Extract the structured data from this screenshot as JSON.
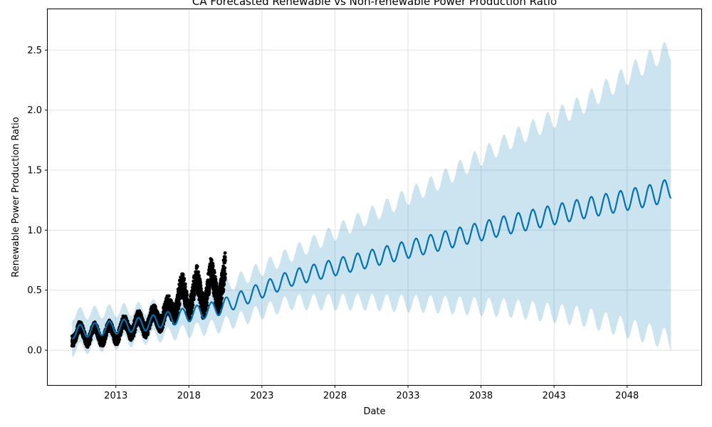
{
  "chart_data": {
    "type": "line",
    "title": "CA Forecasted Renewable vs Non-renewable Power Production Ratio",
    "xlabel": "Date",
    "ylabel": "Renewable Power Production Ratio",
    "xlim": [
      "2008-05-01",
      "2053-02-01"
    ],
    "ylim": [
      -0.29,
      2.84
    ],
    "x_ticks": [
      "2013",
      "2018",
      "2023",
      "2028",
      "2033",
      "2038",
      "2043",
      "2048"
    ],
    "y_ticks": [
      "0.0",
      "0.5",
      "1.0",
      "1.5",
      "2.0",
      "2.5"
    ],
    "grid": true,
    "colors": {
      "forecast_line": "#0072B2",
      "uncertainty_band": "#0072B2",
      "observed_points": "#000000",
      "grid": "#e0e0e0"
    },
    "series": [
      {
        "role": "observed_points",
        "x": [
          "2010-01",
          "2011-01",
          "2012-01",
          "2013-01",
          "2014-01",
          "2015-01",
          "2016-01",
          "2017-01",
          "2017-07",
          "2018-01",
          "2018-07",
          "2019-01",
          "2019-07",
          "2020-01",
          "2020-07"
        ],
        "y": [
          0.14,
          0.13,
          0.13,
          0.15,
          0.2,
          0.22,
          0.28,
          0.35,
          0.5,
          0.38,
          0.55,
          0.4,
          0.6,
          0.45,
          0.65
        ]
      },
      {
        "role": "forecast_line",
        "x": [
          "2010-01",
          "2015-01",
          "2020-01",
          "2025-01",
          "2030-01",
          "2035-01",
          "2040-01",
          "2045-01",
          "2050-01",
          "2051-01"
        ],
        "y": [
          0.15,
          0.22,
          0.35,
          0.6,
          0.75,
          0.9,
          1.05,
          1.18,
          1.3,
          1.35
        ]
      },
      {
        "role": "uncertainty_band_upper",
        "x": [
          "2010-01",
          "2015-01",
          "2020-01",
          "2025-01",
          "2030-01",
          "2035-01",
          "2040-01",
          "2045-01",
          "2050-01",
          "2051-01"
        ],
        "y": [
          0.3,
          0.35,
          0.5,
          0.8,
          1.1,
          1.4,
          1.75,
          2.05,
          2.45,
          2.5
        ]
      },
      {
        "role": "uncertainty_band_lower",
        "x": [
          "2010-01",
          "2015-01",
          "2020-01",
          "2025-01",
          "2030-01",
          "2035-01",
          "2040-01",
          "2045-01",
          "2050-01",
          "2051-01"
        ],
        "y": [
          0.0,
          0.1,
          0.2,
          0.4,
          0.4,
          0.38,
          0.35,
          0.28,
          0.12,
          0.08
        ]
      }
    ]
  }
}
